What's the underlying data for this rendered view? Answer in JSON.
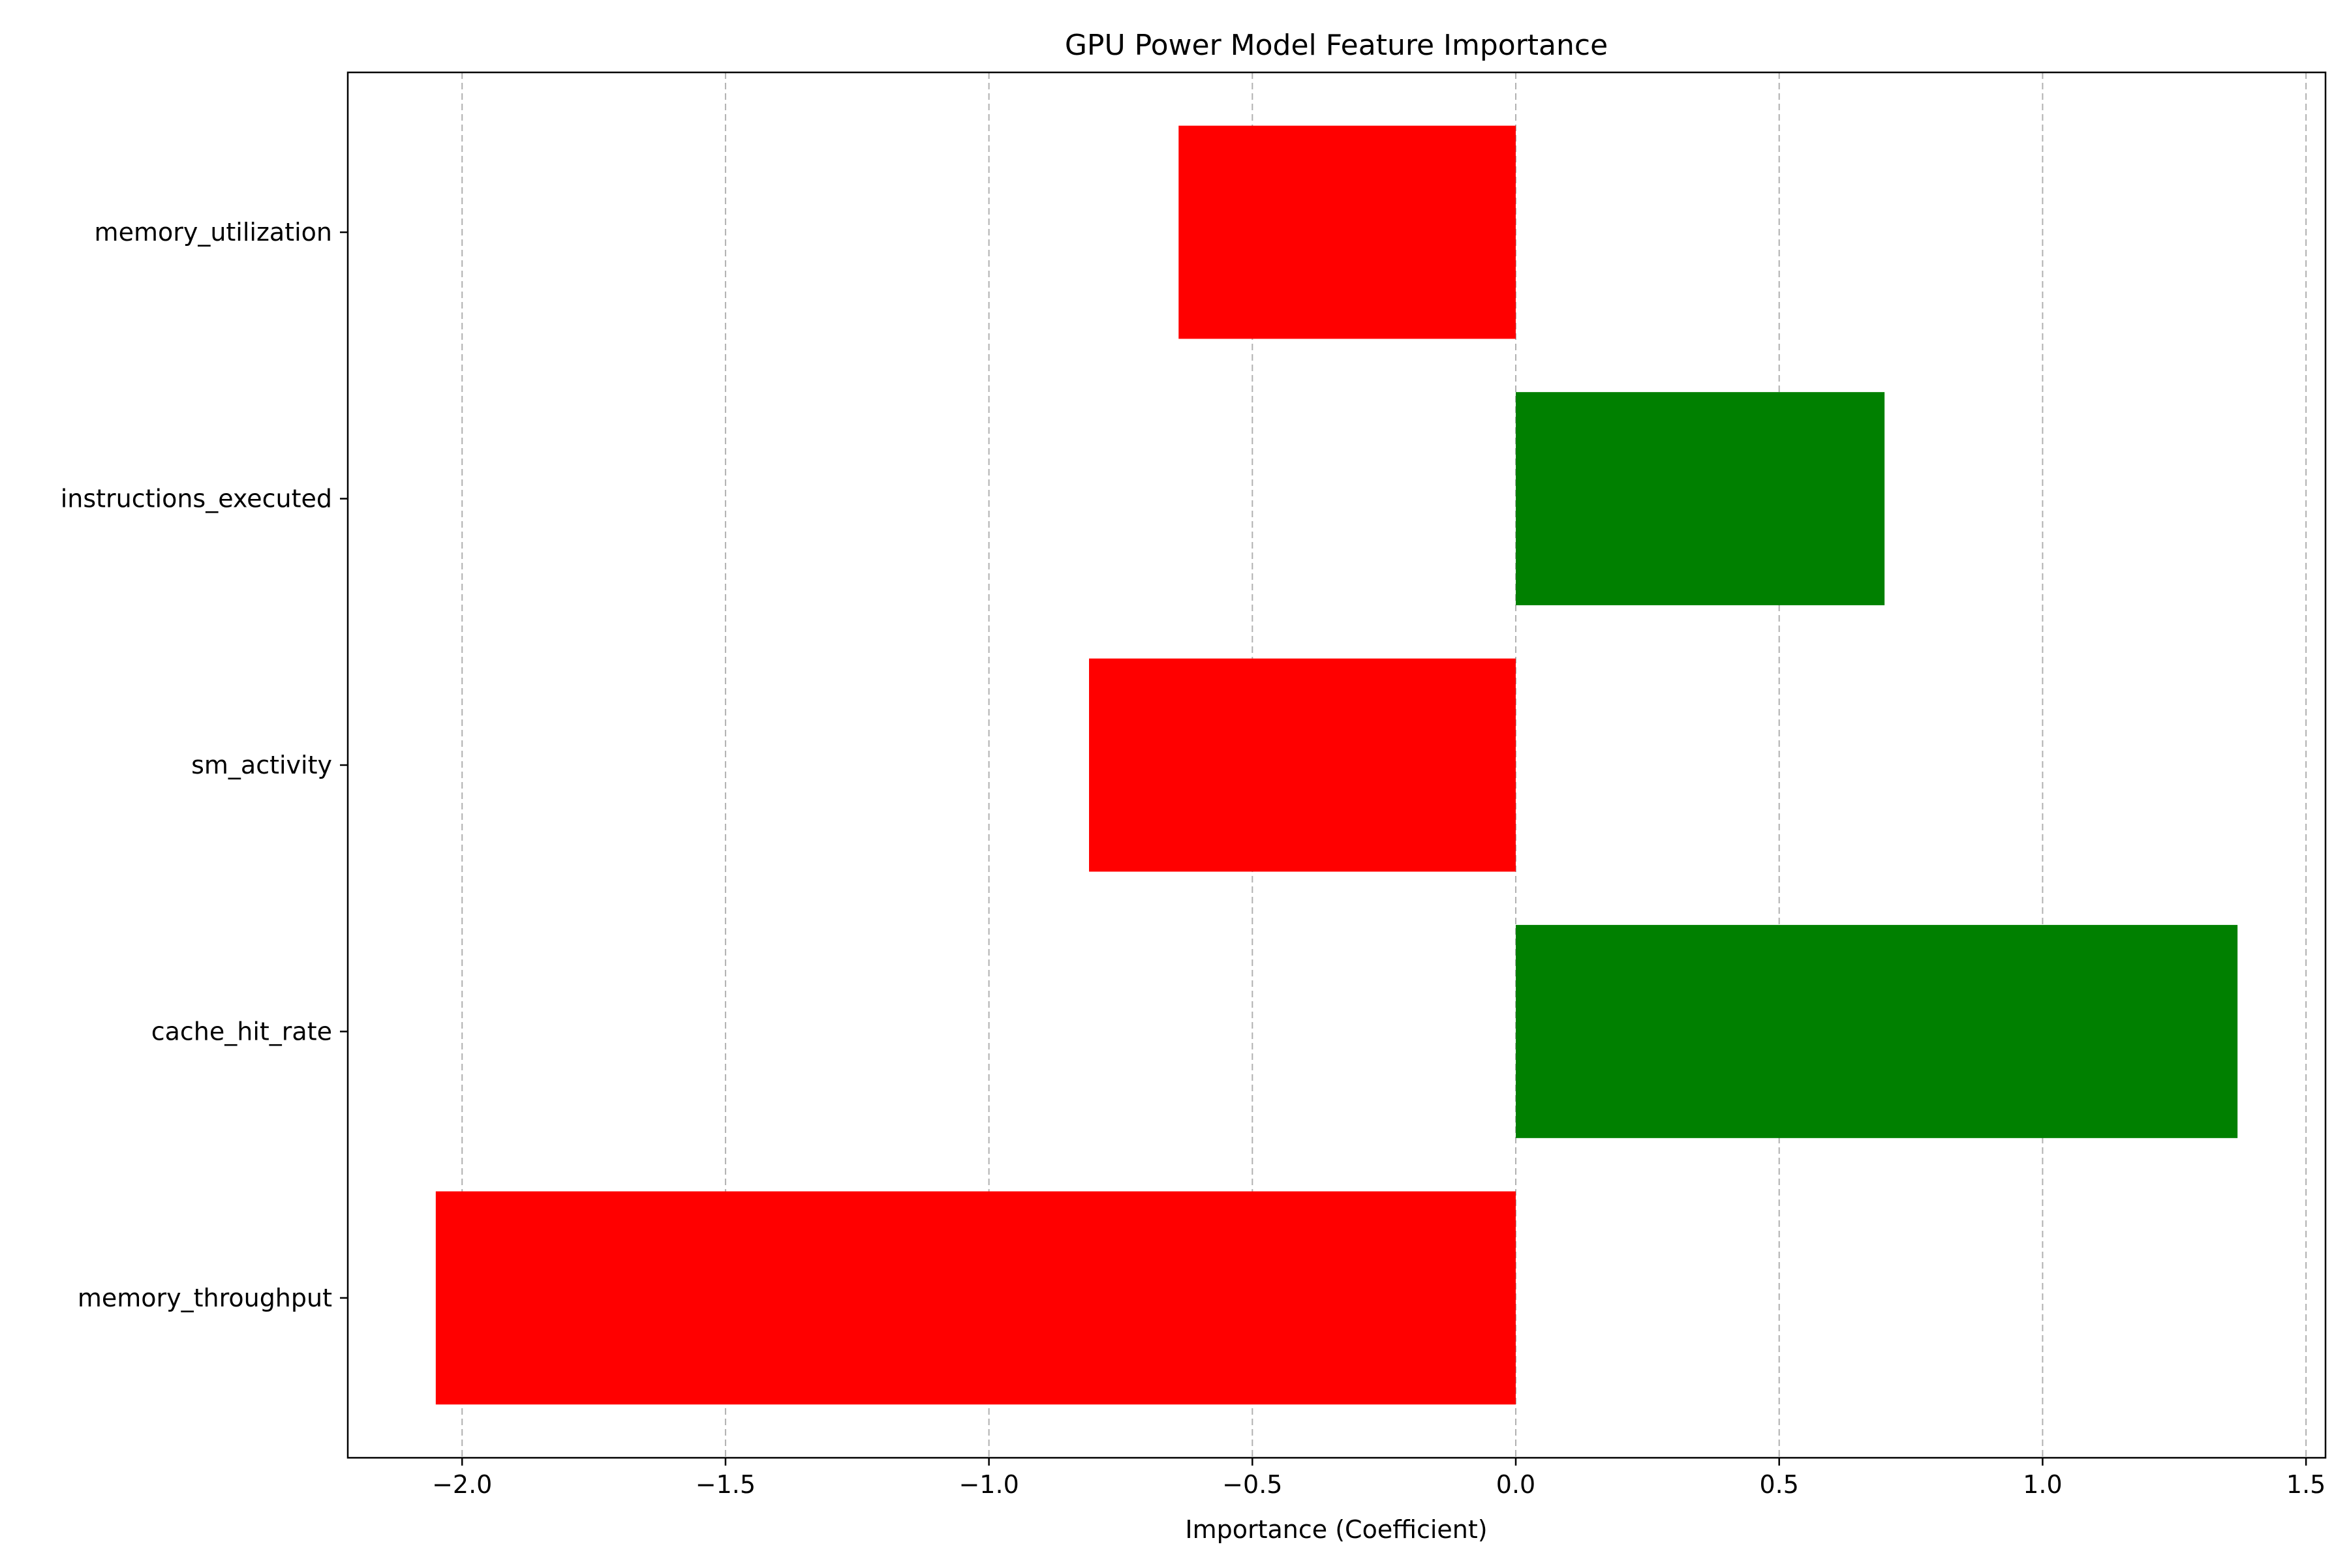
{
  "chart_data": {
    "type": "bar",
    "orientation": "horizontal",
    "title": "GPU Power Model Feature Importance",
    "xlabel": "Importance (Coefficient)",
    "ylabel": "",
    "categories": [
      "memory_throughput",
      "cache_hit_rate",
      "sm_activity",
      "instructions_executed",
      "memory_utilization"
    ],
    "values": [
      -2.05,
      1.37,
      -0.81,
      0.7,
      -0.64
    ],
    "xlim": [
      -2.217,
      1.537
    ],
    "xticks": [
      -2.0,
      -1.5,
      -1.0,
      -0.5,
      0.0,
      0.5,
      1.0,
      1.5
    ],
    "xtick_labels": [
      "−2.0",
      "−1.5",
      "−1.0",
      "−0.5",
      "0.0",
      "0.5",
      "1.0",
      "1.5"
    ],
    "grid": {
      "x": true,
      "y": false,
      "style": "dashed"
    },
    "colors": {
      "positive": "#008000",
      "negative": "#ff0000"
    },
    "legend": "none"
  }
}
